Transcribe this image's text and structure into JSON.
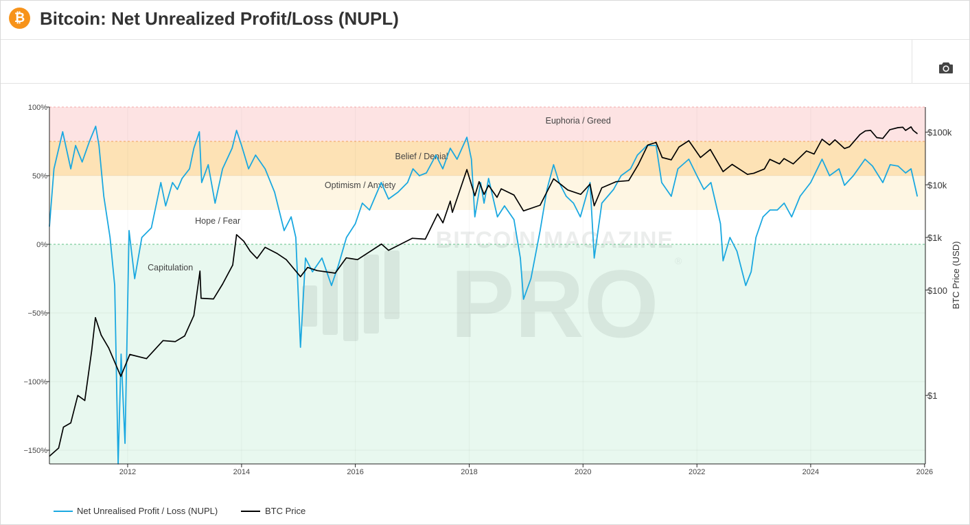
{
  "page": {
    "title": "Bitcoin: Net Unrealized Profit/Loss (NUPL)",
    "logo_glyph": "₿",
    "camera_icon": "camera-icon"
  },
  "watermark": {
    "line1": "BITCOIN MAGAZINE",
    "line2": "PRO",
    "mark": "®"
  },
  "colors": {
    "nupl": "#1aa8e0",
    "price": "#000000",
    "accent": "#f7931a"
  },
  "chart_data": {
    "type": "line",
    "x_range": [
      "2010-08-17",
      "2026-01-06"
    ],
    "x_ticks": [
      "2012",
      "2014",
      "2016",
      "2018",
      "2020",
      "2022",
      "2024",
      "2026"
    ],
    "y_left": {
      "range": [
        -1.6,
        1.0
      ],
      "ticks": [
        1.0,
        0.5,
        0.0,
        -0.5,
        -1.0,
        -1.5
      ],
      "tick_labels": [
        "100%",
        "50%",
        "0%",
        "−50%",
        "−100%",
        "−150%"
      ]
    },
    "y_right": {
      "scale": "log",
      "label": "BTC Price (USD)",
      "range": [
        0.05,
        300000
      ],
      "ticks": [
        100000,
        10000,
        1000,
        100,
        1
      ],
      "tick_labels": [
        "$100k",
        "$10k",
        "$1k",
        "$100",
        "$1"
      ]
    },
    "zones": [
      {
        "name": "Euphoria / Greed",
        "from": 0.75,
        "to": 1.0,
        "color": "#fde3e3",
        "label_at": [
          "2019-12-01",
          0.9
        ]
      },
      {
        "name": "Belief / Denial",
        "from": 0.5,
        "to": 0.75,
        "color": "#fde2b5",
        "label_at": [
          "2017-03-01",
          0.64
        ]
      },
      {
        "name": "Optimism / Anxiety",
        "from": 0.25,
        "to": 0.5,
        "color": "#fef6e3",
        "label_at": [
          "2016-02-01",
          0.43
        ]
      },
      {
        "name": "Hope / Fear",
        "from": 0.0,
        "to": 0.25,
        "color": "#ffffff",
        "label_at": [
          "2013-08-01",
          0.17
        ]
      },
      {
        "name": "Capitulation",
        "from": -1.6,
        "to": 0.0,
        "color": "#e8f8ef",
        "label_at": [
          "2012-10-01",
          -0.17
        ]
      }
    ],
    "series": [
      {
        "name": "Net Unrealised Profit / Loss (NUPL)",
        "axis": "left",
        "points": [
          [
            "2010-08-17",
            0.13
          ],
          [
            "2010-09-15",
            0.55
          ],
          [
            "2010-11-10",
            0.82
          ],
          [
            "2011-01-01",
            0.55
          ],
          [
            "2011-02-01",
            0.72
          ],
          [
            "2011-03-15",
            0.6
          ],
          [
            "2011-05-01",
            0.75
          ],
          [
            "2011-06-10",
            0.86
          ],
          [
            "2011-07-01",
            0.72
          ],
          [
            "2011-08-01",
            0.35
          ],
          [
            "2011-09-10",
            0.05
          ],
          [
            "2011-10-10",
            -0.3
          ],
          [
            "2011-11-01",
            -1.6
          ],
          [
            "2011-11-20",
            -0.8
          ],
          [
            "2011-12-15",
            -1.45
          ],
          [
            "2012-01-10",
            0.1
          ],
          [
            "2012-02-15",
            -0.25
          ],
          [
            "2012-04-01",
            0.05
          ],
          [
            "2012-06-01",
            0.12
          ],
          [
            "2012-08-01",
            0.45
          ],
          [
            "2012-09-01",
            0.28
          ],
          [
            "2012-10-15",
            0.45
          ],
          [
            "2012-11-15",
            0.4
          ],
          [
            "2012-12-15",
            0.48
          ],
          [
            "2013-02-01",
            0.55
          ],
          [
            "2013-03-01",
            0.7
          ],
          [
            "2013-04-05",
            0.82
          ],
          [
            "2013-04-20",
            0.45
          ],
          [
            "2013-06-01",
            0.58
          ],
          [
            "2013-07-15",
            0.3
          ],
          [
            "2013-09-01",
            0.55
          ],
          [
            "2013-11-01",
            0.7
          ],
          [
            "2013-11-30",
            0.83
          ],
          [
            "2014-01-01",
            0.72
          ],
          [
            "2014-02-15",
            0.55
          ],
          [
            "2014-04-01",
            0.65
          ],
          [
            "2014-06-01",
            0.55
          ],
          [
            "2014-08-01",
            0.38
          ],
          [
            "2014-10-01",
            0.1
          ],
          [
            "2014-11-15",
            0.2
          ],
          [
            "2014-12-15",
            0.05
          ],
          [
            "2015-01-14",
            -0.75
          ],
          [
            "2015-02-15",
            -0.1
          ],
          [
            "2015-04-01",
            -0.2
          ],
          [
            "2015-06-01",
            -0.1
          ],
          [
            "2015-08-01",
            -0.3
          ],
          [
            "2015-09-15",
            -0.15
          ],
          [
            "2015-11-05",
            0.05
          ],
          [
            "2016-01-01",
            0.15
          ],
          [
            "2016-02-15",
            0.3
          ],
          [
            "2016-04-01",
            0.25
          ],
          [
            "2016-06-15",
            0.45
          ],
          [
            "2016-08-01",
            0.33
          ],
          [
            "2016-10-01",
            0.38
          ],
          [
            "2016-12-01",
            0.45
          ],
          [
            "2017-01-05",
            0.55
          ],
          [
            "2017-02-15",
            0.5
          ],
          [
            "2017-04-01",
            0.52
          ],
          [
            "2017-06-01",
            0.65
          ],
          [
            "2017-07-15",
            0.55
          ],
          [
            "2017-09-01",
            0.7
          ],
          [
            "2017-10-15",
            0.62
          ],
          [
            "2017-12-17",
            0.78
          ],
          [
            "2018-01-15",
            0.62
          ],
          [
            "2018-02-06",
            0.2
          ],
          [
            "2018-03-15",
            0.45
          ],
          [
            "2018-04-06",
            0.3
          ],
          [
            "2018-05-05",
            0.48
          ],
          [
            "2018-07-01",
            0.2
          ],
          [
            "2018-08-15",
            0.28
          ],
          [
            "2018-10-15",
            0.18
          ],
          [
            "2018-11-25",
            -0.1
          ],
          [
            "2018-12-15",
            -0.4
          ],
          [
            "2019-02-01",
            -0.25
          ],
          [
            "2019-04-01",
            0.1
          ],
          [
            "2019-05-15",
            0.4
          ],
          [
            "2019-06-26",
            0.58
          ],
          [
            "2019-08-01",
            0.45
          ],
          [
            "2019-09-15",
            0.35
          ],
          [
            "2019-11-01",
            0.3
          ],
          [
            "2019-12-15",
            0.2
          ],
          [
            "2020-02-15",
            0.45
          ],
          [
            "2020-03-13",
            -0.1
          ],
          [
            "2020-05-01",
            0.3
          ],
          [
            "2020-07-15",
            0.4
          ],
          [
            "2020-09-01",
            0.5
          ],
          [
            "2020-11-01",
            0.55
          ],
          [
            "2020-12-15",
            0.65
          ],
          [
            "2021-02-15",
            0.72
          ],
          [
            "2021-04-14",
            0.72
          ],
          [
            "2021-05-20",
            0.45
          ],
          [
            "2021-07-20",
            0.35
          ],
          [
            "2021-09-01",
            0.55
          ],
          [
            "2021-11-10",
            0.62
          ],
          [
            "2022-01-01",
            0.5
          ],
          [
            "2022-02-15",
            0.4
          ],
          [
            "2022-04-01",
            0.45
          ],
          [
            "2022-06-01",
            0.15
          ],
          [
            "2022-06-18",
            -0.12
          ],
          [
            "2022-08-01",
            0.05
          ],
          [
            "2022-09-15",
            -0.05
          ],
          [
            "2022-11-10",
            -0.3
          ],
          [
            "2022-12-15",
            -0.2
          ],
          [
            "2023-01-15",
            0.05
          ],
          [
            "2023-03-01",
            0.2
          ],
          [
            "2023-04-15",
            0.25
          ],
          [
            "2023-06-01",
            0.25
          ],
          [
            "2023-07-15",
            0.3
          ],
          [
            "2023-09-01",
            0.2
          ],
          [
            "2023-10-25",
            0.35
          ],
          [
            "2024-01-01",
            0.45
          ],
          [
            "2024-03-14",
            0.62
          ],
          [
            "2024-05-01",
            0.5
          ],
          [
            "2024-07-01",
            0.55
          ],
          [
            "2024-08-05",
            0.43
          ],
          [
            "2024-10-01",
            0.5
          ],
          [
            "2024-12-15",
            0.62
          ],
          [
            "2025-02-01",
            0.57
          ],
          [
            "2025-04-08",
            0.45
          ],
          [
            "2025-05-25",
            0.58
          ],
          [
            "2025-07-15",
            0.57
          ],
          [
            "2025-09-01",
            0.52
          ],
          [
            "2025-10-06",
            0.55
          ],
          [
            "2025-11-15",
            0.35
          ]
        ]
      },
      {
        "name": "BTC Price",
        "axis": "right",
        "points": [
          [
            "2010-08-17",
            0.07
          ],
          [
            "2010-10-15",
            0.1
          ],
          [
            "2010-11-15",
            0.25
          ],
          [
            "2011-01-01",
            0.3
          ],
          [
            "2011-02-15",
            1.0
          ],
          [
            "2011-04-01",
            0.8
          ],
          [
            "2011-05-15",
            7
          ],
          [
            "2011-06-08",
            30
          ],
          [
            "2011-07-15",
            14
          ],
          [
            "2011-09-01",
            8
          ],
          [
            "2011-11-18",
            2.3
          ],
          [
            "2012-01-15",
            6
          ],
          [
            "2012-05-01",
            5
          ],
          [
            "2012-08-15",
            11
          ],
          [
            "2012-11-01",
            10.5
          ],
          [
            "2013-01-01",
            13.5
          ],
          [
            "2013-03-01",
            33
          ],
          [
            "2013-04-09",
            230
          ],
          [
            "2013-04-16",
            70
          ],
          [
            "2013-07-05",
            68
          ],
          [
            "2013-09-01",
            130
          ],
          [
            "2013-11-05",
            300
          ],
          [
            "2013-11-30",
            1130
          ],
          [
            "2014-01-15",
            850
          ],
          [
            "2014-02-25",
            550
          ],
          [
            "2014-04-10",
            400
          ],
          [
            "2014-06-01",
            650
          ],
          [
            "2014-08-15",
            500
          ],
          [
            "2014-10-15",
            380
          ],
          [
            "2015-01-14",
            180
          ],
          [
            "2015-03-01",
            270
          ],
          [
            "2015-05-01",
            235
          ],
          [
            "2015-08-25",
            210
          ],
          [
            "2015-11-04",
            410
          ],
          [
            "2016-01-15",
            380
          ],
          [
            "2016-06-17",
            750
          ],
          [
            "2016-08-01",
            570
          ],
          [
            "2016-12-31",
            965
          ],
          [
            "2017-03-25",
            930
          ],
          [
            "2017-06-12",
            2800
          ],
          [
            "2017-07-16",
            1900
          ],
          [
            "2017-09-01",
            4900
          ],
          [
            "2017-09-15",
            3000
          ],
          [
            "2017-12-17",
            19500
          ],
          [
            "2018-02-06",
            6200
          ],
          [
            "2018-03-05",
            11500
          ],
          [
            "2018-04-06",
            6600
          ],
          [
            "2018-05-05",
            9800
          ],
          [
            "2018-06-28",
            5800
          ],
          [
            "2018-07-25",
            8400
          ],
          [
            "2018-10-15",
            6400
          ],
          [
            "2018-12-15",
            3200
          ],
          [
            "2019-04-01",
            4100
          ],
          [
            "2019-06-26",
            13000
          ],
          [
            "2019-08-15",
            10000
          ],
          [
            "2019-09-25",
            8000
          ],
          [
            "2019-12-17",
            6600
          ],
          [
            "2020-02-15",
            10300
          ],
          [
            "2020-03-13",
            4000
          ],
          [
            "2020-05-01",
            8800
          ],
          [
            "2020-08-01",
            11500
          ],
          [
            "2020-10-20",
            12000
          ],
          [
            "2020-12-20",
            24000
          ],
          [
            "2021-02-20",
            57000
          ],
          [
            "2021-04-14",
            64000
          ],
          [
            "2021-05-23",
            33000
          ],
          [
            "2021-07-20",
            29800
          ],
          [
            "2021-09-07",
            52000
          ],
          [
            "2021-11-10",
            69000
          ],
          [
            "2022-01-24",
            33000
          ],
          [
            "2022-03-28",
            47000
          ],
          [
            "2022-06-18",
            17800
          ],
          [
            "2022-08-15",
            24500
          ],
          [
            "2022-11-21",
            15800
          ],
          [
            "2023-01-01",
            16600
          ],
          [
            "2023-03-10",
            20000
          ],
          [
            "2023-04-14",
            30500
          ],
          [
            "2023-06-15",
            25000
          ],
          [
            "2023-07-14",
            31500
          ],
          [
            "2023-09-11",
            25000
          ],
          [
            "2023-12-05",
            44000
          ],
          [
            "2024-01-23",
            38500
          ],
          [
            "2024-03-14",
            73500
          ],
          [
            "2024-05-01",
            57000
          ],
          [
            "2024-06-05",
            71500
          ],
          [
            "2024-08-05",
            49000
          ],
          [
            "2024-09-06",
            53000
          ],
          [
            "2024-11-12",
            90000
          ],
          [
            "2024-12-17",
            106000
          ],
          [
            "2025-01-20",
            108000
          ],
          [
            "2025-02-28",
            79000
          ],
          [
            "2025-04-08",
            76000
          ],
          [
            "2025-05-22",
            111000
          ],
          [
            "2025-07-14",
            122000
          ],
          [
            "2025-08-14",
            124000
          ],
          [
            "2025-09-01",
            108000
          ],
          [
            "2025-10-06",
            126000
          ],
          [
            "2025-10-20",
            108000
          ],
          [
            "2025-11-15",
            94000
          ]
        ]
      }
    ],
    "legend": {
      "placement": "bottom-left",
      "entries": [
        "Net Unrealised Profit / Loss (NUPL)",
        "BTC Price"
      ]
    }
  }
}
